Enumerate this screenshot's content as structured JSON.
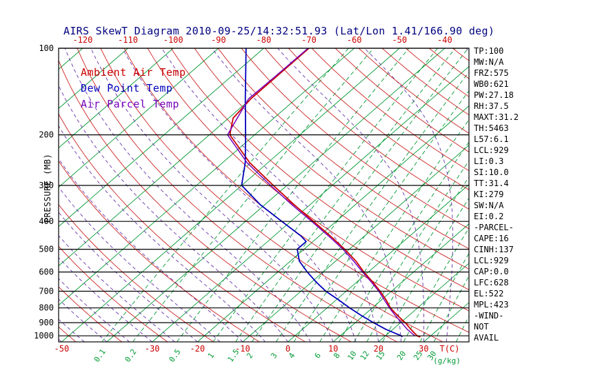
{
  "title": "AIRS SkewT Diagram 2010-09-25/14:32:51.93 (Lat/Lon 1.41/166.90 deg)",
  "colors": {
    "title": "#000080",
    "isotherm": "#009933",
    "mixing_ratio": "#009933",
    "dry_adiabat": "#cc2222",
    "moist_adiabat": "#6633aa",
    "pressure_line": "#000000",
    "temp_labels": "#cc0000",
    "pressure_labels": "#000000",
    "stats_text": "#000000"
  },
  "legend": {
    "items": [
      {
        "label": "Ambient Air Temp",
        "color": "#cc0000"
      },
      {
        "label": "Dew Point Temp",
        "color": "#0000bb"
      },
      {
        "label": "Air Parcel Temp",
        "color": "#7700bb"
      }
    ]
  },
  "axes": {
    "pressure_label": "PRESSURE (MB)",
    "pressure_ticks": [
      100,
      200,
      300,
      400,
      500,
      600,
      700,
      800,
      900,
      1000
    ],
    "top_temp_ticks": [
      -120,
      -110,
      -100,
      -90,
      -80,
      -70,
      -60,
      -50,
      -40
    ],
    "bottom_temp_ticks": [
      -50,
      -30,
      -20,
      -10,
      0,
      10,
      20,
      30
    ],
    "bottom_temp_unit": "T(C)",
    "mixing_ratio_ticks": [
      0.1,
      0.2,
      0.5,
      1,
      1.5,
      2,
      3,
      4,
      6,
      8,
      10,
      12,
      15,
      20,
      25,
      30
    ],
    "mixing_ratio_unit": "(g/kg)"
  },
  "stats": {
    "lines": [
      "TP:100",
      "MW:N/A",
      "FRZ:575",
      "WB0:621",
      "PW:27.18",
      "RH:37.5",
      "MAXT:31.2",
      "TH:5463",
      "L57:6.1",
      "LCL:929",
      "LI:0.3",
      "SI:10.0",
      "TT:31.4",
      "KI:279",
      "SW:N/A",
      "EI:0.2",
      "-PARCEL-",
      "CAPE:16",
      "CINH:137",
      "LCL:929",
      "CAP:0.0",
      "LFC:628",
      "EL:522",
      "MPL:423",
      "-WIND-",
      "NOT",
      "AVAIL"
    ]
  },
  "chart_data": {
    "type": "line",
    "variant": "skew-t log-p diagram",
    "title": "AIRS SkewT Diagram 2010-09-25/14:32:51.93 (Lat/Lon 1.41/166.90 deg)",
    "xlabel": "T(C)",
    "ylabel": "PRESSURE (MB)",
    "pressure_range": [
      100,
      1050
    ],
    "isotherm_range": [
      -120,
      40
    ],
    "isotherm_step": 10,
    "dry_adiabats_thetaC": [
      -50,
      -40,
      -30,
      -20,
      -10,
      0,
      10,
      20,
      30,
      40,
      50,
      60,
      70,
      80,
      90,
      100,
      110,
      120,
      130,
      140,
      150,
      160,
      170,
      180
    ],
    "moist_adiabats_startC": [
      -50,
      -45,
      -40,
      -35,
      -30,
      -25,
      -20,
      -15,
      -10,
      -5,
      0,
      5,
      10,
      15,
      20,
      25,
      30,
      35,
      40
    ],
    "mixing_ratio_lines": [
      0.1,
      0.2,
      0.5,
      1,
      1.5,
      2,
      3,
      4,
      6,
      8,
      10,
      12,
      15,
      20,
      25,
      30,
      40
    ],
    "series": [
      {
        "name": "Ambient Air Temp",
        "color": "#cc0000",
        "points": [
          [
            1010,
            28
          ],
          [
            1000,
            27
          ],
          [
            950,
            24
          ],
          [
            900,
            21
          ],
          [
            850,
            17.5
          ],
          [
            800,
            14
          ],
          [
            750,
            11
          ],
          [
            700,
            7.5
          ],
          [
            650,
            3.5
          ],
          [
            600,
            -1
          ],
          [
            550,
            -5.5
          ],
          [
            500,
            -11
          ],
          [
            450,
            -17.5
          ],
          [
            400,
            -25
          ],
          [
            350,
            -33.5
          ],
          [
            300,
            -43
          ],
          [
            250,
            -54
          ],
          [
            200,
            -65.5
          ],
          [
            175,
            -69
          ],
          [
            150,
            -70
          ],
          [
            125,
            -70
          ],
          [
            100,
            -70
          ]
        ]
      },
      {
        "name": "Dew Point Temp",
        "color": "#0000bb",
        "points": [
          [
            1010,
            24
          ],
          [
            1000,
            23.5
          ],
          [
            950,
            18.5
          ],
          [
            900,
            14
          ],
          [
            850,
            9.5
          ],
          [
            800,
            5
          ],
          [
            750,
            0.5
          ],
          [
            700,
            -4.5
          ],
          [
            650,
            -9
          ],
          [
            600,
            -13.5
          ],
          [
            550,
            -18
          ],
          [
            500,
            -21.5
          ],
          [
            470,
            -21.5
          ],
          [
            450,
            -24
          ],
          [
            400,
            -32
          ],
          [
            350,
            -41
          ],
          [
            300,
            -50
          ],
          [
            250,
            -55
          ],
          [
            200,
            -62
          ],
          [
            150,
            -71.2
          ],
          [
            100,
            -83.9
          ]
        ]
      },
      {
        "name": "Air Parcel Temp",
        "color": "#7700bb",
        "points": [
          [
            1000,
            26.5
          ],
          [
            950,
            23.2
          ],
          [
            900,
            20.2
          ],
          [
            850,
            17
          ],
          [
            800,
            13.8
          ],
          [
            750,
            10.6
          ],
          [
            700,
            7.2
          ],
          [
            650,
            3.2
          ],
          [
            600,
            -1.3
          ],
          [
            550,
            -6
          ],
          [
            500,
            -11.4
          ],
          [
            450,
            -17.9
          ],
          [
            400,
            -25.4
          ],
          [
            350,
            -34
          ],
          [
            300,
            -43.6
          ],
          [
            250,
            -54.6
          ],
          [
            200,
            -66
          ],
          [
            150,
            -70.5
          ],
          [
            125,
            -70.3
          ],
          [
            100,
            -70.2
          ]
        ]
      }
    ]
  }
}
